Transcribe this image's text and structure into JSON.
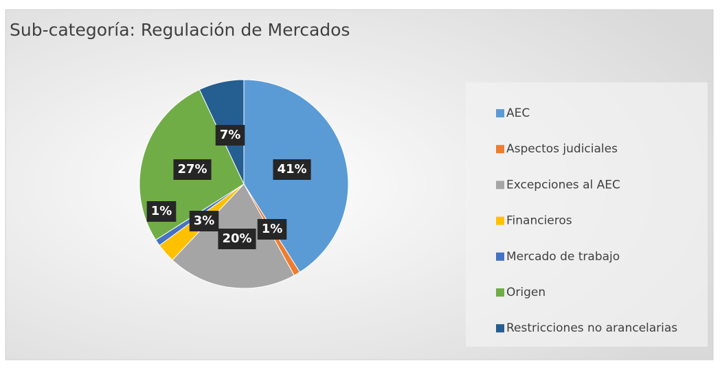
{
  "chart_data": {
    "type": "pie",
    "title": "Sub-categoría: Regulación de Mercados",
    "categories": [
      "AEC",
      "Aspectos judiciales",
      "Excepciones al AEC",
      "Financieros",
      "Mercado de trabajo",
      "Origen",
      "Restricciones no arancelarias"
    ],
    "values": [
      41,
      1,
      20,
      3,
      1,
      27,
      7
    ],
    "value_labels": [
      "41%",
      "1%",
      "20%",
      "3%",
      "1%",
      "27%",
      "7%"
    ],
    "colors": [
      "#5b9bd5",
      "#ed7d31",
      "#a5a5a5",
      "#ffc000",
      "#4472c4",
      "#70ad47",
      "#255e91"
    ],
    "legend": "right"
  }
}
